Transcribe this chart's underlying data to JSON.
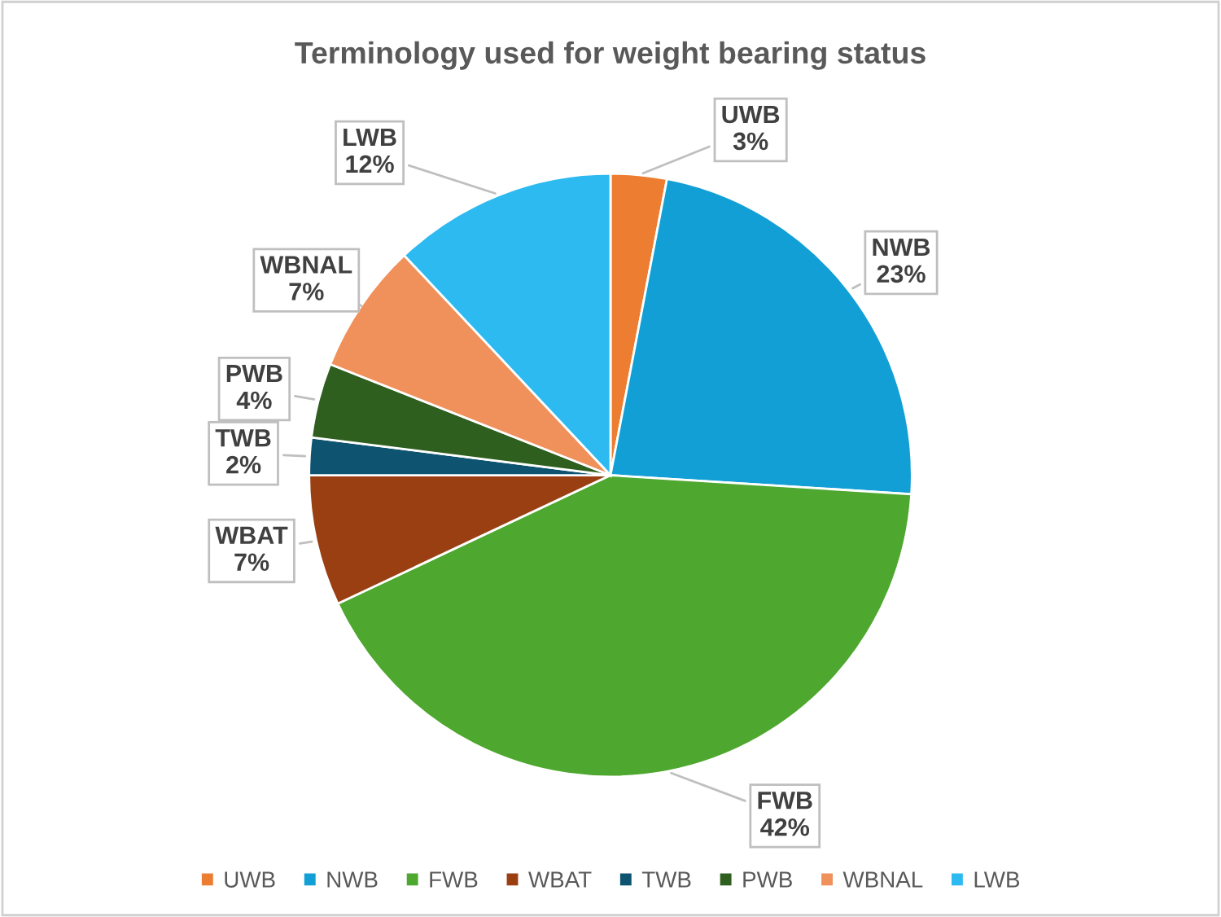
{
  "chart_data": {
    "type": "pie",
    "title": "Terminology used for weight bearing status",
    "categories": [
      "UWB",
      "NWB",
      "FWB",
      "WBAT",
      "TWB",
      "PWB",
      "WBNAL",
      "LWB"
    ],
    "values": [
      3,
      23,
      42,
      7,
      2,
      4,
      7,
      12
    ],
    "value_labels": [
      "3%",
      "23%",
      "42%",
      "7%",
      "2%",
      "4%",
      "7%",
      "12%"
    ],
    "colors": [
      "#ed7d31",
      "#129fd6",
      "#4ea72e",
      "#9a3f12",
      "#0e5470",
      "#2f5f1f",
      "#f0905a",
      "#2dbaf0"
    ],
    "legend": "bottom"
  }
}
